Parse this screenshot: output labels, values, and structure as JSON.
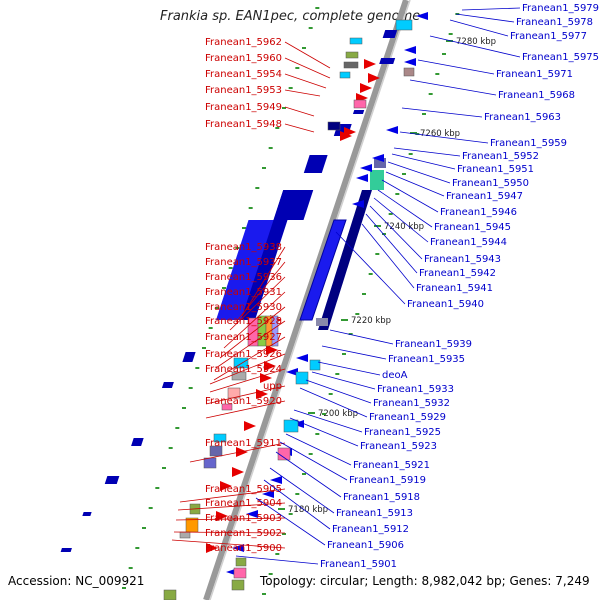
{
  "title": "Frankia sp. EAN1pec, complete genome",
  "accession": "Accession: NC_009921",
  "summary": "Topology: circular; Length: 8,982,042 bp; Genes: 7,249",
  "kbp_marks": [
    "7280 kbp",
    "7260 kbp",
    "7240 kbp",
    "7220 kbp",
    "7200 kbp",
    "7180 kbp"
  ],
  "left_labels": [
    "Franean1_5962",
    "Franean1_5960",
    "Franean1_5954",
    "Franean1_5953",
    "Franean1_5949",
    "Franean1_5948",
    "Franean1_5938",
    "Franean1_5937",
    "Franean1_5936",
    "Franean1_5931",
    "Franean1_5930",
    "Franean1_5928",
    "Franean1_5927",
    "Franean1_5926",
    "Franean1_5924",
    "upp",
    "Franean1_5920",
    "Franean1_5911",
    "Franean1_5905",
    "Franean1_5904",
    "Franean1_5903",
    "Franean1_5902",
    "Franean1_5900"
  ],
  "right_labels": [
    "Franean1_5979",
    "Franean1_5978",
    "Franean1_5977",
    "Franean1_5975",
    "Franean1_5971",
    "Franean1_5968",
    "Franean1_5963",
    "Franean1_5959",
    "Franean1_5952",
    "Franean1_5951",
    "Franean1_5950",
    "Franean1_5947",
    "Franean1_5946",
    "Franean1_5945",
    "Franean1_5944",
    "Franean1_5943",
    "Franean1_5942",
    "Franean1_5941",
    "Franean1_5940",
    "Franean1_5939",
    "Franean1_5935",
    "deoA",
    "Franean1_5933",
    "Franean1_5932",
    "Franean1_5929",
    "Franean1_5925",
    "Franean1_5923",
    "Franean1_5921",
    "Franean1_5919",
    "Franean1_5918",
    "Franean1_5913",
    "Franean1_5912",
    "Franean1_5906",
    "Franean1_5901"
  ],
  "colors": {
    "left_label": "#cc0000",
    "right_label": "#0000cc",
    "backbone": "#999999",
    "forward_gene": "#e60000",
    "reverse_gene": "#0000e6",
    "tick_green": "#339933"
  }
}
